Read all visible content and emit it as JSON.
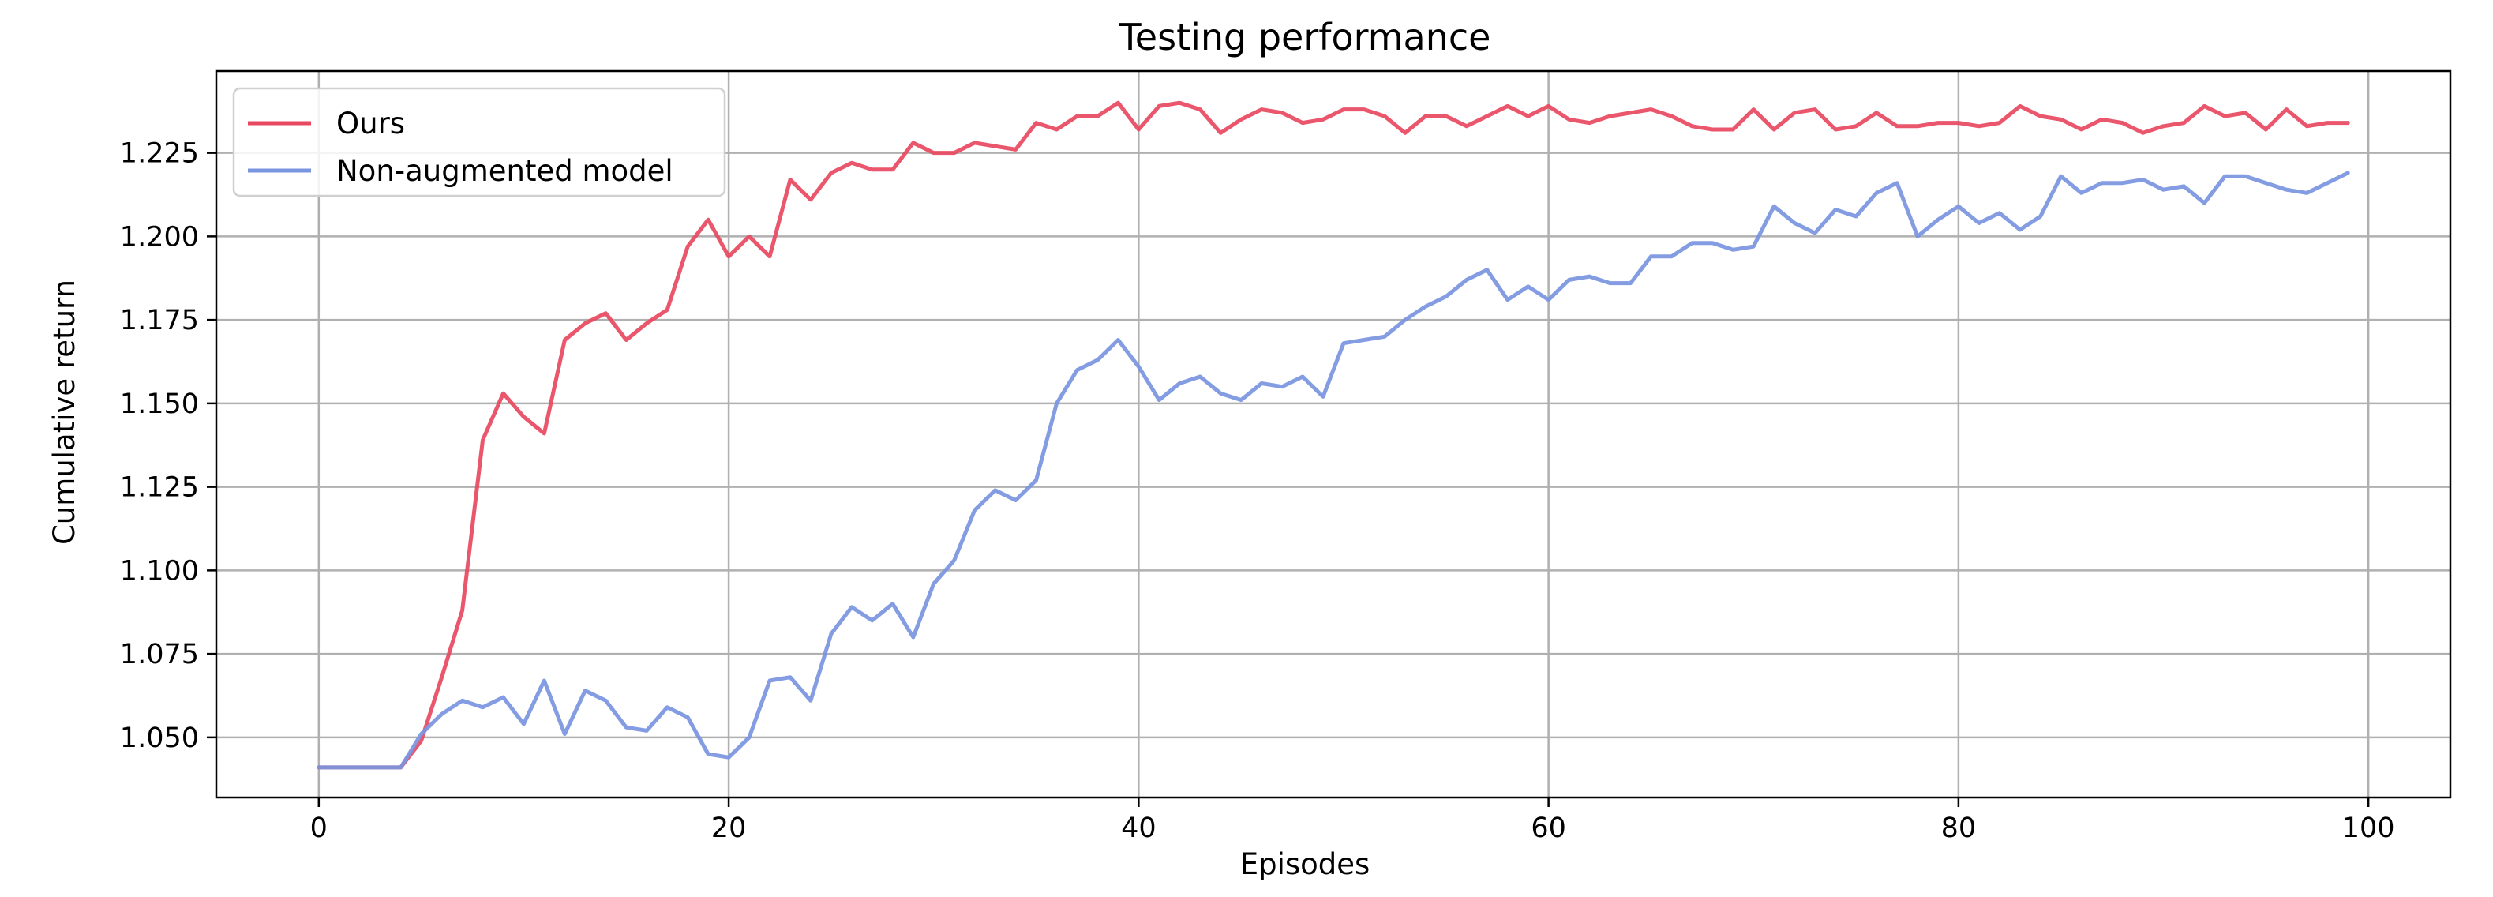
{
  "chart_data": {
    "type": "line",
    "title": "Testing performance",
    "xlabel": "Episodes",
    "ylabel": "Cumulative return",
    "xlim": [
      -5,
      104
    ],
    "ylim": [
      1.032,
      1.2495
    ],
    "xticks": [
      0,
      20,
      40,
      60,
      80,
      100
    ],
    "yticks": [
      1.05,
      1.075,
      1.1,
      1.125,
      1.15,
      1.175,
      1.2,
      1.225
    ],
    "ytick_labels": [
      "1.050",
      "1.075",
      "1.100",
      "1.125",
      "1.150",
      "1.175",
      "1.200",
      "1.225"
    ],
    "grid": true,
    "legend_position": "top-left",
    "series": [
      {
        "name": "Ours",
        "color": "#e8485f",
        "x": [
          0,
          1,
          2,
          3,
          4,
          5,
          6,
          7,
          8,
          9,
          10,
          11,
          12,
          13,
          14,
          15,
          16,
          17,
          18,
          19,
          20,
          21,
          22,
          23,
          24,
          25,
          26,
          27,
          28,
          29,
          30,
          31,
          32,
          33,
          34,
          35,
          36,
          37,
          38,
          39,
          40,
          41,
          42,
          43,
          44,
          45,
          46,
          47,
          48,
          49,
          50,
          51,
          52,
          53,
          54,
          55,
          56,
          57,
          58,
          59,
          60,
          61,
          62,
          63,
          64,
          65,
          66,
          67,
          68,
          69,
          70,
          71,
          72,
          73,
          74,
          75,
          76,
          77,
          78,
          79,
          80,
          81,
          82,
          83,
          84,
          85,
          86,
          87,
          88,
          89,
          90,
          91,
          92,
          93,
          94,
          95,
          96,
          97,
          98,
          99
        ],
        "values": [
          1.041,
          1.041,
          1.041,
          1.041,
          1.041,
          1.049,
          1.068,
          1.088,
          1.139,
          1.153,
          1.146,
          1.141,
          1.169,
          1.174,
          1.177,
          1.169,
          1.174,
          1.178,
          1.197,
          1.205,
          1.194,
          1.2,
          1.194,
          1.217,
          1.211,
          1.219,
          1.222,
          1.22,
          1.22,
          1.228,
          1.225,
          1.225,
          1.228,
          1.227,
          1.226,
          1.234,
          1.232,
          1.236,
          1.236,
          1.24,
          1.232,
          1.239,
          1.24,
          1.238,
          1.231,
          1.235,
          1.238,
          1.237,
          1.234,
          1.235,
          1.238,
          1.238,
          1.236,
          1.231,
          1.236,
          1.236,
          1.233,
          1.236,
          1.239,
          1.236,
          1.239,
          1.235,
          1.234,
          1.236,
          1.237,
          1.238,
          1.236,
          1.233,
          1.232,
          1.232,
          1.238,
          1.232,
          1.237,
          1.238,
          1.232,
          1.233,
          1.237,
          1.233,
          1.233,
          1.234,
          1.234,
          1.233,
          1.234,
          1.239,
          1.236,
          1.235,
          1.232,
          1.235,
          1.234,
          1.231,
          1.233,
          1.234,
          1.239,
          1.236,
          1.237,
          1.232,
          1.238,
          1.233,
          1.234,
          1.234
        ]
      },
      {
        "name": "Non-augmented model",
        "color": "#7a95e0",
        "x": [
          0,
          1,
          2,
          3,
          4,
          5,
          6,
          7,
          8,
          9,
          10,
          11,
          12,
          13,
          14,
          15,
          16,
          17,
          18,
          19,
          20,
          21,
          22,
          23,
          24,
          25,
          26,
          27,
          28,
          29,
          30,
          31,
          32,
          33,
          34,
          35,
          36,
          37,
          38,
          39,
          40,
          41,
          42,
          43,
          44,
          45,
          46,
          47,
          48,
          49,
          50,
          51,
          52,
          53,
          54,
          55,
          56,
          57,
          58,
          59,
          60,
          61,
          62,
          63,
          64,
          65,
          66,
          67,
          68,
          69,
          70,
          71,
          72,
          73,
          74,
          75,
          76,
          77,
          78,
          79,
          80,
          81,
          82,
          83,
          84,
          85,
          86,
          87,
          88,
          89,
          90,
          91,
          92,
          93,
          94,
          95,
          96,
          97,
          98,
          99
        ],
        "values": [
          1.041,
          1.041,
          1.041,
          1.041,
          1.041,
          1.051,
          1.057,
          1.061,
          1.059,
          1.062,
          1.054,
          1.067,
          1.051,
          1.064,
          1.061,
          1.053,
          1.052,
          1.059,
          1.056,
          1.045,
          1.044,
          1.05,
          1.067,
          1.068,
          1.061,
          1.081,
          1.089,
          1.085,
          1.09,
          1.08,
          1.096,
          1.103,
          1.118,
          1.124,
          1.121,
          1.127,
          1.15,
          1.16,
          1.163,
          1.169,
          1.161,
          1.151,
          1.156,
          1.158,
          1.153,
          1.151,
          1.156,
          1.155,
          1.158,
          1.152,
          1.168,
          1.169,
          1.17,
          1.175,
          1.179,
          1.182,
          1.187,
          1.19,
          1.181,
          1.185,
          1.181,
          1.187,
          1.188,
          1.186,
          1.186,
          1.194,
          1.194,
          1.198,
          1.198,
          1.196,
          1.197,
          1.209,
          1.204,
          1.201,
          1.208,
          1.206,
          1.213,
          1.216,
          1.2,
          1.205,
          1.209,
          1.204,
          1.207,
          1.202,
          1.206,
          1.218,
          1.213,
          1.216,
          1.216,
          1.217,
          1.214,
          1.215,
          1.21,
          1.218,
          1.218,
          1.216,
          1.214,
          1.213,
          1.216,
          1.219
        ]
      }
    ]
  }
}
